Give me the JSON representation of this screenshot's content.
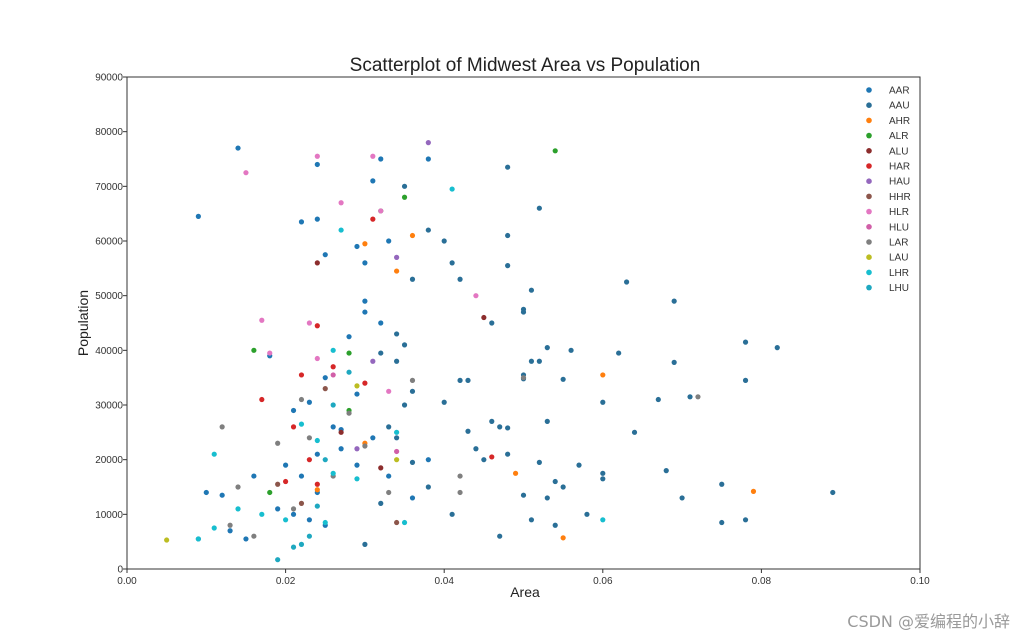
{
  "chart_data": {
    "type": "scatter",
    "title": "Scatterplot of Midwest Area vs Population",
    "xlabel": "Area",
    "ylabel": "Population",
    "xlim": [
      0.0,
      0.1
    ],
    "ylim": [
      0,
      90000
    ],
    "x_ticks": [
      0.0,
      0.02,
      0.04,
      0.06,
      0.08,
      0.1
    ],
    "x_tick_labels": [
      "0.00",
      "0.02",
      "0.04",
      "0.06",
      "0.08",
      "0.10"
    ],
    "y_ticks": [
      0,
      10000,
      20000,
      30000,
      40000,
      50000,
      60000,
      70000,
      80000,
      90000
    ],
    "y_tick_labels": [
      "0",
      "10000",
      "20000",
      "30000",
      "40000",
      "50000",
      "60000",
      "70000",
      "80000",
      "90000"
    ],
    "grid": false,
    "legend_position": "top-right",
    "series": [
      {
        "name": "AAR",
        "color": "#1f77b4",
        "points": [
          [
            0.014,
            77000
          ],
          [
            0.009,
            64500
          ],
          [
            0.024,
            74000
          ],
          [
            0.032,
            75000
          ],
          [
            0.031,
            71000
          ],
          [
            0.038,
            75000
          ],
          [
            0.029,
            59000
          ],
          [
            0.033,
            60000
          ],
          [
            0.022,
            63500
          ],
          [
            0.024,
            64000
          ],
          [
            0.025,
            57500
          ],
          [
            0.03,
            56000
          ],
          [
            0.028,
            42500
          ],
          [
            0.03,
            49000
          ],
          [
            0.03,
            47000
          ],
          [
            0.032,
            45000
          ],
          [
            0.025,
            35000
          ],
          [
            0.029,
            32000
          ],
          [
            0.023,
            30500
          ],
          [
            0.021,
            29000
          ],
          [
            0.026,
            26000
          ],
          [
            0.027,
            25500
          ],
          [
            0.024,
            21000
          ],
          [
            0.02,
            19000
          ],
          [
            0.022,
            17000
          ],
          [
            0.024,
            14000
          ],
          [
            0.018,
            39000
          ],
          [
            0.015,
            5500
          ],
          [
            0.016,
            17000
          ],
          [
            0.01,
            14000
          ],
          [
            0.012,
            13500
          ],
          [
            0.013,
            7000
          ],
          [
            0.009,
            5500
          ],
          [
            0.019,
            11000
          ],
          [
            0.021,
            10000
          ],
          [
            0.023,
            9000
          ],
          [
            0.025,
            8000
          ],
          [
            0.027,
            22000
          ],
          [
            0.031,
            24000
          ],
          [
            0.033,
            17000
          ],
          [
            0.036,
            13000
          ],
          [
            0.038,
            20000
          ],
          [
            0.029,
            19000
          ]
        ]
      },
      {
        "name": "AAU",
        "color": "#2a6f97",
        "points": [
          [
            0.048,
            73500
          ],
          [
            0.052,
            66000
          ],
          [
            0.04,
            60000
          ],
          [
            0.048,
            61000
          ],
          [
            0.041,
            56000
          ],
          [
            0.048,
            55500
          ],
          [
            0.042,
            53000
          ],
          [
            0.051,
            51000
          ],
          [
            0.05,
            47500
          ],
          [
            0.05,
            47000
          ],
          [
            0.046,
            45000
          ],
          [
            0.053,
            40500
          ],
          [
            0.056,
            40000
          ],
          [
            0.051,
            38000
          ],
          [
            0.052,
            38000
          ],
          [
            0.05,
            35500
          ],
          [
            0.05,
            34800
          ],
          [
            0.055,
            34700
          ],
          [
            0.043,
            34500
          ],
          [
            0.042,
            34500
          ],
          [
            0.04,
            30500
          ],
          [
            0.046,
            27000
          ],
          [
            0.053,
            27000
          ],
          [
            0.047,
            26000
          ],
          [
            0.048,
            25800
          ],
          [
            0.043,
            25200
          ],
          [
            0.044,
            22000
          ],
          [
            0.048,
            21000
          ],
          [
            0.045,
            20000
          ],
          [
            0.052,
            19500
          ],
          [
            0.054,
            16000
          ],
          [
            0.05,
            13500
          ],
          [
            0.055,
            15000
          ],
          [
            0.057,
            19000
          ],
          [
            0.053,
            13000
          ],
          [
            0.058,
            10000
          ],
          [
            0.051,
            9000
          ],
          [
            0.054,
            8000
          ],
          [
            0.047,
            6000
          ],
          [
            0.041,
            10000
          ],
          [
            0.06,
            17500
          ],
          [
            0.06,
            16500
          ],
          [
            0.062,
            39500
          ],
          [
            0.063,
            52500
          ],
          [
            0.06,
            30500
          ],
          [
            0.064,
            25000
          ],
          [
            0.067,
            31000
          ],
          [
            0.068,
            18000
          ],
          [
            0.069,
            49000
          ],
          [
            0.069,
            37800
          ],
          [
            0.07,
            13000
          ],
          [
            0.071,
            31500
          ],
          [
            0.075,
            15500
          ],
          [
            0.075,
            8500
          ],
          [
            0.078,
            41500
          ],
          [
            0.078,
            34500
          ],
          [
            0.078,
            9000
          ],
          [
            0.082,
            40500
          ],
          [
            0.089,
            14000
          ],
          [
            0.035,
            70000
          ],
          [
            0.036,
            53000
          ],
          [
            0.038,
            62000
          ],
          [
            0.034,
            43000
          ],
          [
            0.035,
            41000
          ],
          [
            0.032,
            39500
          ],
          [
            0.034,
            38000
          ],
          [
            0.036,
            32500
          ],
          [
            0.035,
            30000
          ],
          [
            0.033,
            26000
          ],
          [
            0.034,
            24000
          ],
          [
            0.036,
            19500
          ],
          [
            0.038,
            15000
          ],
          [
            0.032,
            12000
          ],
          [
            0.03,
            4500
          ]
        ]
      },
      {
        "name": "AHR",
        "color": "#ff7f0e",
        "points": [
          [
            0.03,
            59500
          ],
          [
            0.036,
            61000
          ],
          [
            0.034,
            54500
          ],
          [
            0.06,
            35500
          ],
          [
            0.049,
            17500
          ],
          [
            0.055,
            5700
          ],
          [
            0.079,
            14200
          ],
          [
            0.024,
            14500
          ],
          [
            0.03,
            23000
          ]
        ]
      },
      {
        "name": "ALR",
        "color": "#2ca02c",
        "points": [
          [
            0.054,
            76500
          ],
          [
            0.035,
            68000
          ],
          [
            0.032,
            65500
          ],
          [
            0.016,
            40000
          ],
          [
            0.028,
            39500
          ],
          [
            0.028,
            29000
          ],
          [
            0.018,
            14000
          ]
        ]
      },
      {
        "name": "ALU",
        "color": "#8c2d2d",
        "points": [
          [
            0.024,
            56000
          ],
          [
            0.045,
            46000
          ],
          [
            0.027,
            25000
          ],
          [
            0.032,
            18500
          ]
        ]
      },
      {
        "name": "HAR",
        "color": "#d62728",
        "points": [
          [
            0.031,
            64000
          ],
          [
            0.024,
            44500
          ],
          [
            0.017,
            31000
          ],
          [
            0.022,
            35500
          ],
          [
            0.021,
            26000
          ],
          [
            0.023,
            20000
          ],
          [
            0.02,
            16000
          ],
          [
            0.024,
            15500
          ],
          [
            0.026,
            37000
          ],
          [
            0.03,
            34000
          ],
          [
            0.046,
            20500
          ]
        ]
      },
      {
        "name": "HAU",
        "color": "#9467bd",
        "points": [
          [
            0.038,
            78000
          ],
          [
            0.034,
            57000
          ],
          [
            0.031,
            38000
          ],
          [
            0.029,
            22000
          ]
        ]
      },
      {
        "name": "HHR",
        "color": "#8c564b",
        "points": [
          [
            0.022,
            12000
          ],
          [
            0.025,
            33000
          ],
          [
            0.034,
            8500
          ],
          [
            0.019,
            15500
          ]
        ]
      },
      {
        "name": "HLR",
        "color": "#e377c2",
        "points": [
          [
            0.015,
            72500
          ],
          [
            0.024,
            75500
          ],
          [
            0.031,
            75500
          ],
          [
            0.027,
            67000
          ],
          [
            0.032,
            65500
          ],
          [
            0.017,
            45500
          ],
          [
            0.023,
            45000
          ],
          [
            0.044,
            50000
          ],
          [
            0.018,
            39500
          ],
          [
            0.024,
            38500
          ],
          [
            0.033,
            32500
          ]
        ]
      },
      {
        "name": "HLU",
        "color": "#d15fa8",
        "points": [
          [
            0.026,
            35500
          ],
          [
            0.034,
            21500
          ]
        ]
      },
      {
        "name": "LAR",
        "color": "#7f7f7f",
        "points": [
          [
            0.012,
            26000
          ],
          [
            0.014,
            15000
          ],
          [
            0.016,
            6000
          ],
          [
            0.019,
            23000
          ],
          [
            0.022,
            31000
          ],
          [
            0.023,
            24000
          ],
          [
            0.028,
            28500
          ],
          [
            0.03,
            22500
          ],
          [
            0.036,
            34500
          ],
          [
            0.05,
            35000
          ],
          [
            0.042,
            17000
          ],
          [
            0.042,
            14000
          ],
          [
            0.072,
            31500
          ],
          [
            0.013,
            8000
          ],
          [
            0.021,
            11000
          ],
          [
            0.026,
            17000
          ],
          [
            0.033,
            14000
          ]
        ]
      },
      {
        "name": "LAU",
        "color": "#bcbd22",
        "points": [
          [
            0.005,
            5300
          ],
          [
            0.029,
            33500
          ],
          [
            0.034,
            20000
          ]
        ]
      },
      {
        "name": "LHR",
        "color": "#17becf",
        "points": [
          [
            0.041,
            69500
          ],
          [
            0.027,
            62000
          ],
          [
            0.026,
            40000
          ],
          [
            0.022,
            26500
          ],
          [
            0.011,
            21000
          ],
          [
            0.014,
            11000
          ],
          [
            0.017,
            10000
          ],
          [
            0.02,
            9000
          ],
          [
            0.009,
            5500
          ],
          [
            0.011,
            7500
          ],
          [
            0.024,
            23500
          ],
          [
            0.026,
            17500
          ],
          [
            0.029,
            16500
          ],
          [
            0.034,
            25000
          ],
          [
            0.035,
            8500
          ],
          [
            0.06,
            9000
          ],
          [
            0.025,
            8500
          ]
        ]
      },
      {
        "name": "LHU",
        "color": "#1ea8c0",
        "points": [
          [
            0.019,
            1700
          ],
          [
            0.021,
            4000
          ],
          [
            0.022,
            4500
          ],
          [
            0.023,
            6000
          ],
          [
            0.024,
            11500
          ],
          [
            0.025,
            20000
          ],
          [
            0.026,
            30000
          ],
          [
            0.028,
            36000
          ]
        ]
      }
    ]
  },
  "watermark": "CSDN @爱编程的小辞"
}
